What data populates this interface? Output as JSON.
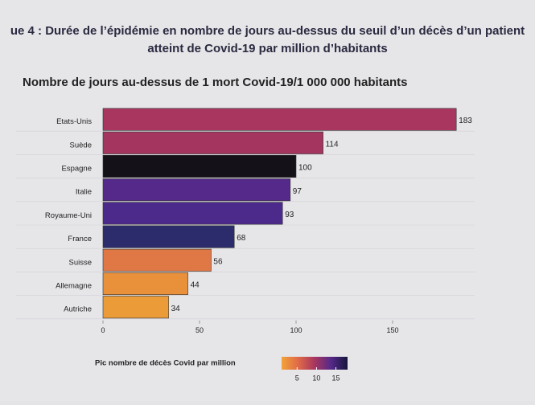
{
  "heading": "ue 4 : Durée de l’épidémie en nombre de jours au-dessus du seuil d’un décès d’un patient atteint de Covid-19 par million d’habitants",
  "chart_data": {
    "type": "barh",
    "title": "Nombre de jours au-dessus de 1 mort Covid-19/1 000 000 habitants",
    "categories": [
      "Etats-Unis",
      "Suède",
      "Espagne",
      "Italie",
      "Royaume-Uni",
      "France",
      "Suisse",
      "Allemagne",
      "Autriche"
    ],
    "values": [
      183,
      114,
      100,
      97,
      93,
      68,
      56,
      44,
      34
    ],
    "colors": [
      "#a8365f",
      "#a3355f",
      "#141218",
      "#55298a",
      "#4c2a8c",
      "#2c2c6c",
      "#e07845",
      "#e8913a",
      "#eb9b37"
    ],
    "xlim": [
      0,
      190
    ],
    "xticks": [
      0,
      50,
      100,
      150
    ],
    "colorbar": {
      "title": "Pic nombre de décès Covid par million",
      "clim": [
        1,
        18
      ],
      "ticks": [
        5,
        10,
        15
      ],
      "colors": [
        "#f2a23a",
        "#e06a48",
        "#a8365f",
        "#55298a",
        "#14163a"
      ]
    }
  }
}
